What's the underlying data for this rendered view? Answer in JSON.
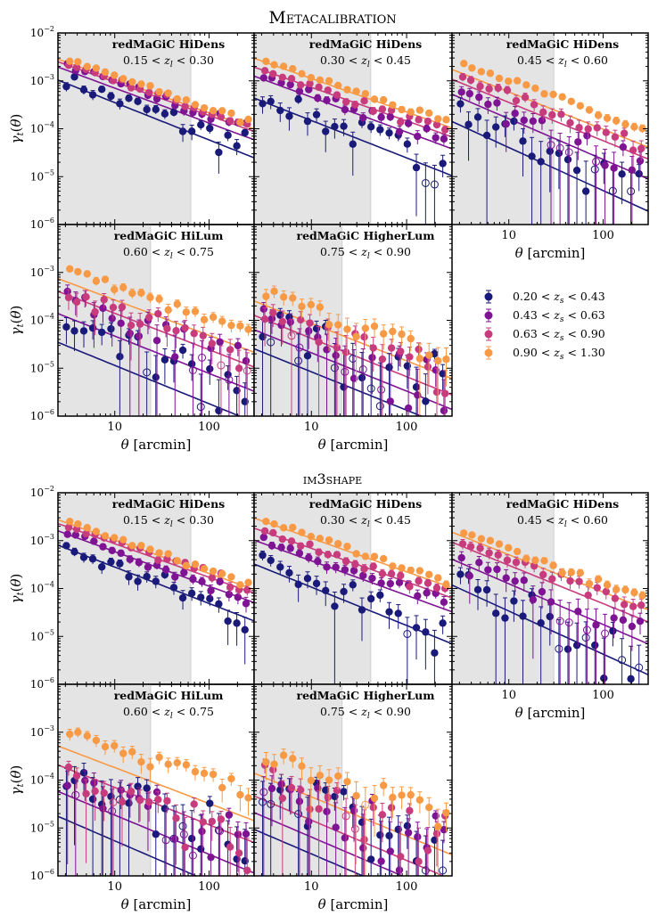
{
  "chart_data": {
    "type": "scatter",
    "figure_sections": [
      {
        "title": "METACALIBRATION",
        "title_display": "Metacalibration",
        "title_style": "small-caps"
      },
      {
        "title": "IM3SHAPE",
        "title_display": "im3shape",
        "title_style": "small-caps"
      }
    ],
    "xlabel": "θ [arcmin]",
    "ylabel": "γt(θ)",
    "xscale": "log",
    "yscale": "log",
    "xlim": [
      2.5,
      300
    ],
    "ylim": [
      1e-06,
      0.01
    ],
    "xticks": [
      {
        "value": 10,
        "label": "10"
      },
      {
        "value": 100,
        "label": "100"
      }
    ],
    "yticks": [
      {
        "value": 0.01,
        "base": "10",
        "exp": "−2"
      },
      {
        "value": 0.001,
        "base": "10",
        "exp": "−3"
      },
      {
        "value": 0.0001,
        "base": "10",
        "exp": "−4"
      },
      {
        "value": 1e-05,
        "base": "10",
        "exp": "−5"
      },
      {
        "value": 1e-06,
        "base": "10",
        "exp": "−6"
      }
    ],
    "legend": {
      "placement": "right of middle row, upper section",
      "entries": [
        {
          "label": "0.20 < zs < 0.43",
          "pre": "0.20 < ",
          "var": "z",
          "sub": "s",
          "post": " < 0.43",
          "color": "#1a1a7a"
        },
        {
          "label": "0.43 < zs < 0.63",
          "pre": "0.43 < ",
          "var": "z",
          "sub": "s",
          "post": " < 0.63",
          "color": "#7e1394"
        },
        {
          "label": "0.63 < zs < 0.90",
          "pre": "0.63 < ",
          "var": "z",
          "sub": "s",
          "post": " < 0.90",
          "color": "#c83c7e"
        },
        {
          "label": "0.90 < zs < 1.30",
          "pre": "0.90 < ",
          "var": "z",
          "sub": "s",
          "post": " < 1.30",
          "color": "#f89a45"
        }
      ]
    },
    "lens_bins": [
      {
        "sample": "redMaGiC HiDens",
        "zrange": "0.15 < zl < 0.30",
        "lo": "0.15",
        "hi": "0.30",
        "scale_cut": 64
      },
      {
        "sample": "redMaGiC HiDens",
        "zrange": "0.30 < zl < 0.45",
        "lo": "0.30",
        "hi": "0.45",
        "scale_cut": 42
      },
      {
        "sample": "redMaGiC HiDens",
        "zrange": "0.45 < zl < 0.60",
        "lo": "0.45",
        "hi": "0.60",
        "scale_cut": 30
      },
      {
        "sample": "redMaGiC HiLum",
        "zrange": "0.60 < zl < 0.75",
        "lo": "0.60",
        "hi": "0.75",
        "scale_cut": 24
      },
      {
        "sample": "redMaGiC HigherLum",
        "zrange": "0.75 < zl < 0.90",
        "lo": "0.75",
        "hi": "0.90",
        "scale_cut": 21
      }
    ],
    "theta_points": [
      3.2,
      3.9,
      4.9,
      6.1,
      7.6,
      9.5,
      11.8,
      14.7,
      18.3,
      22.8,
      28.4,
      35.4,
      44.1,
      54.9,
      68.4,
      85.2,
      106,
      132,
      165,
      205,
      250
    ],
    "model_curves": {
      "description": "power-law model curves, value at theta=3 arcmin and slope in log-log",
      "metacalibration": [
        [
          [
            0.0009,
            -0.78
          ],
          [
            0.0017,
            -0.73
          ],
          [
            0.0022,
            -0.7
          ],
          [
            0.0025,
            -0.7
          ]
        ],
        [
          [
            0.00038,
            -0.78
          ],
          [
            0.0011,
            -0.73
          ],
          [
            0.0017,
            -0.7
          ],
          [
            0.0026,
            -0.7
          ]
        ],
        [
          [
            0.00012,
            -0.9
          ],
          [
            0.00045,
            -0.85
          ],
          [
            0.00093,
            -0.8
          ],
          [
            0.0015,
            -0.78
          ]
        ],
        [
          [
            3e-05,
            -0.8
          ],
          [
            0.00012,
            -0.78
          ],
          [
            0.00035,
            -0.76
          ],
          [
            0.00065,
            -0.74
          ]
        ],
        [
          [
            2.2e-05,
            -0.8
          ],
          [
            5.5e-05,
            -0.8
          ],
          [
            0.00011,
            -0.8
          ],
          [
            0.00022,
            -0.78
          ]
        ]
      ],
      "im3shape": [
        [
          [
            0.0007,
            -0.76
          ],
          [
            0.0014,
            -0.72
          ],
          [
            0.002,
            -0.7
          ],
          [
            0.0024,
            -0.7
          ]
        ],
        [
          [
            0.00028,
            -0.8
          ],
          [
            0.0009,
            -0.72
          ],
          [
            0.0016,
            -0.7
          ],
          [
            0.0026,
            -0.7
          ]
        ],
        [
          [
            0.0001,
            -0.9
          ],
          [
            0.00035,
            -0.85
          ],
          [
            0.0008,
            -0.8
          ],
          [
            0.0013,
            -0.78
          ]
        ],
        [
          [
            1.5e-05,
            -0.85
          ],
          [
            5e-05,
            -0.82
          ],
          [
            0.00018,
            -0.78
          ],
          [
            0.00045,
            -0.75
          ]
        ],
        [
          [
            8e-06,
            -0.85
          ],
          [
            1.8e-05,
            -0.85
          ],
          [
            4e-05,
            -0.84
          ],
          [
            0.00012,
            -0.82
          ]
        ]
      ]
    },
    "point_amplitudes": {
      "description": "measured points: amplitude at theta=3, slope, multiplicative scatter, relative error (approximate reading)",
      "metacalibration": [
        [
          [
            0.0011,
            -0.75,
            0.35,
            0.25
          ],
          [
            0.0022,
            -0.7,
            0.15,
            0.15
          ],
          [
            0.0024,
            -0.68,
            0.1,
            0.12
          ],
          [
            0.0028,
            -0.68,
            0.08,
            0.1
          ]
        ],
        [
          [
            0.0005,
            -0.8,
            0.45,
            0.45
          ],
          [
            0.0013,
            -0.72,
            0.15,
            0.2
          ],
          [
            0.0018,
            -0.7,
            0.12,
            0.15
          ],
          [
            0.0027,
            -0.68,
            0.08,
            0.12
          ]
        ],
        [
          [
            0.00022,
            -0.85,
            0.6,
            0.9
          ],
          [
            0.0005,
            -0.82,
            0.35,
            0.6
          ],
          [
            0.0013,
            -0.78,
            0.15,
            0.3
          ],
          [
            0.0025,
            -0.75,
            0.1,
            0.15
          ]
        ],
        [
          [
            6e-05,
            -0.8,
            0.8,
            1.2
          ],
          [
            0.0003,
            -0.8,
            0.5,
            0.85
          ],
          [
            0.0004,
            -0.75,
            0.4,
            0.6
          ],
          [
            0.0012,
            -0.72,
            0.15,
            0.25
          ]
        ],
        [
          [
            8e-05,
            -0.8,
            0.9,
            1.3
          ],
          [
            0.0001,
            -0.8,
            0.7,
            1.1
          ],
          [
            0.00015,
            -0.78,
            0.55,
            0.9
          ],
          [
            0.0004,
            -0.75,
            0.3,
            0.55
          ]
        ]
      ],
      "im3shape": [
        [
          [
            0.0007,
            -0.74,
            0.35,
            0.3
          ],
          [
            0.0015,
            -0.7,
            0.18,
            0.18
          ],
          [
            0.0021,
            -0.68,
            0.12,
            0.15
          ],
          [
            0.0025,
            -0.68,
            0.08,
            0.1
          ]
        ],
        [
          [
            0.00035,
            -0.8,
            0.45,
            0.55
          ],
          [
            0.0011,
            -0.72,
            0.18,
            0.25
          ],
          [
            0.0017,
            -0.7,
            0.12,
            0.18
          ],
          [
            0.0028,
            -0.68,
            0.08,
            0.12
          ]
        ],
        [
          [
            0.00012,
            -0.85,
            0.7,
            1.1
          ],
          [
            0.00035,
            -0.82,
            0.45,
            0.75
          ],
          [
            0.001,
            -0.78,
            0.18,
            0.35
          ],
          [
            0.0016,
            -0.75,
            0.1,
            0.18
          ]
        ],
        [
          [
            0.00015,
            -0.8,
            0.8,
            1.2
          ],
          [
            0.00012,
            -0.8,
            0.7,
            1.1
          ],
          [
            0.00012,
            -0.78,
            0.6,
            0.9
          ],
          [
            0.0012,
            -0.72,
            0.25,
            0.35
          ]
        ],
        [
          [
            8e-05,
            -0.8,
            0.9,
            1.3
          ],
          [
            9e-05,
            -0.8,
            0.8,
            1.2
          ],
          [
            0.00012,
            -0.78,
            0.7,
            1.0
          ],
          [
            0.00035,
            -0.75,
            0.4,
            0.7
          ]
        ]
      ]
    }
  }
}
